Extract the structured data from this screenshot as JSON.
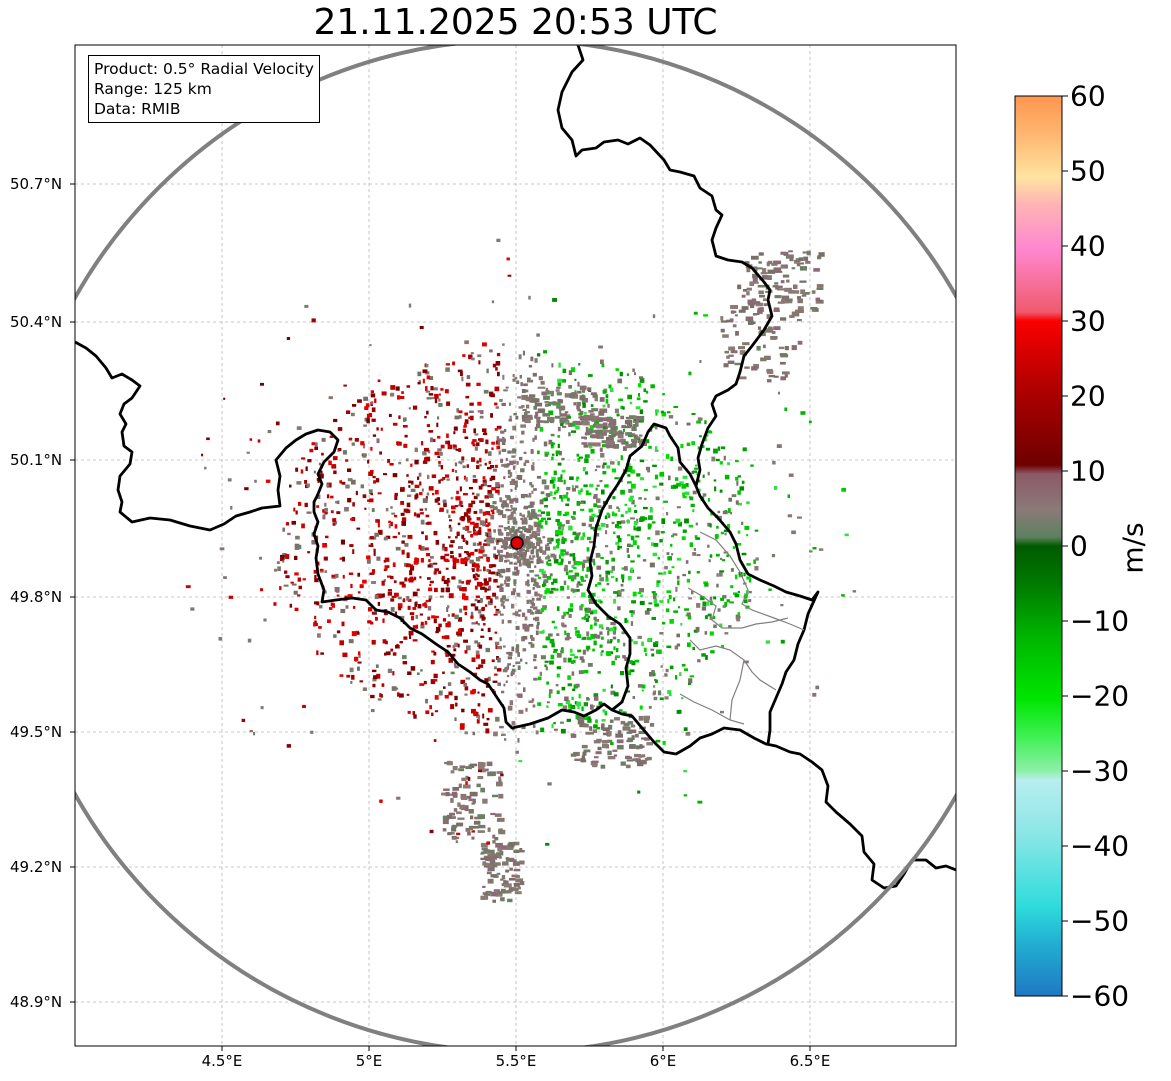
{
  "title": "21.11.2025 20:53 UTC",
  "info_box": {
    "product": "Product: 0.5° Radial Velocity",
    "range": "Range: 125 km",
    "data": "Data: RMIB"
  },
  "latitude_labels": [
    "50.7°N",
    "50.4°N",
    "50.1°N",
    "49.8°N",
    "49.5°N",
    "49.2°N",
    "48.9°N"
  ],
  "longitude_labels": [
    "4.5°E",
    "5°E",
    "5.5°E",
    "6°E",
    "6.5°E"
  ],
  "colorbar": {
    "unit": "m/s",
    "tick_labels": [
      "60",
      "50",
      "40",
      "30",
      "20",
      "10",
      "0",
      "−10",
      "−20",
      "−30",
      "−40",
      "−50",
      "−60"
    ],
    "min": -60,
    "max": 60
  },
  "radar_site": {
    "lon": 5.505,
    "lat": 49.914
  },
  "colors": {
    "approaching": "#00c800",
    "receding": "#c80000",
    "zero": "#867670",
    "range_ring": "#808080",
    "border": "#000000"
  }
}
